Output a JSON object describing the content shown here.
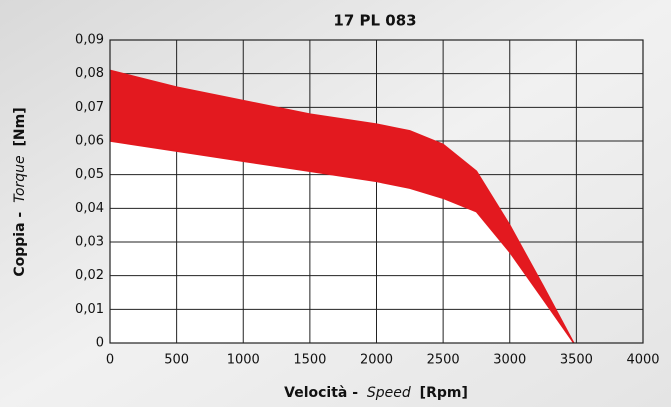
{
  "chart_data": {
    "type": "band",
    "title": "17 PL 083",
    "x_label_parts": [
      "Velocità -",
      "Speed",
      "[Rpm]"
    ],
    "y_label_parts": [
      "Coppia -",
      "Torque",
      "[Nm]"
    ],
    "x": [
      0,
      500,
      1000,
      1500,
      2000,
      2250,
      2500,
      2750,
      3000,
      3250,
      3480
    ],
    "series": [
      {
        "color": "#e3191f",
        "values": [
          0.081,
          0.076,
          0.072,
          0.068,
          0.065,
          0.063,
          0.059,
          0.051,
          0.035,
          0.017,
          0
        ]
      },
      {
        "color": "#e3191f",
        "values": [
          0.06,
          0.057,
          0.054,
          0.051,
          0.048,
          0.046,
          0.043,
          0.039,
          0.027,
          0.013,
          0
        ]
      }
    ],
    "xlim": [
      0,
      4000
    ],
    "xticks": [
      0,
      500,
      1000,
      1500,
      2000,
      2500,
      3000,
      3500,
      4000
    ],
    "ylim": [
      0,
      0.09
    ],
    "yticks": [
      0,
      {
        "value": 0.01,
        "label": "0,01"
      },
      {
        "value": 0.02,
        "label": "0,02"
      },
      {
        "value": 0.03,
        "label": "0,03"
      },
      {
        "value": 0.04,
        "label": "0,04"
      },
      {
        "value": 0.05,
        "label": "0,05"
      },
      {
        "value": 0.06,
        "label": "0,06"
      },
      {
        "value": 0.07,
        "label": "0,07"
      },
      {
        "value": 0.08,
        "label": "0,08"
      },
      {
        "value": 0.09,
        "label": "0,09"
      }
    ],
    "grid": true
  }
}
